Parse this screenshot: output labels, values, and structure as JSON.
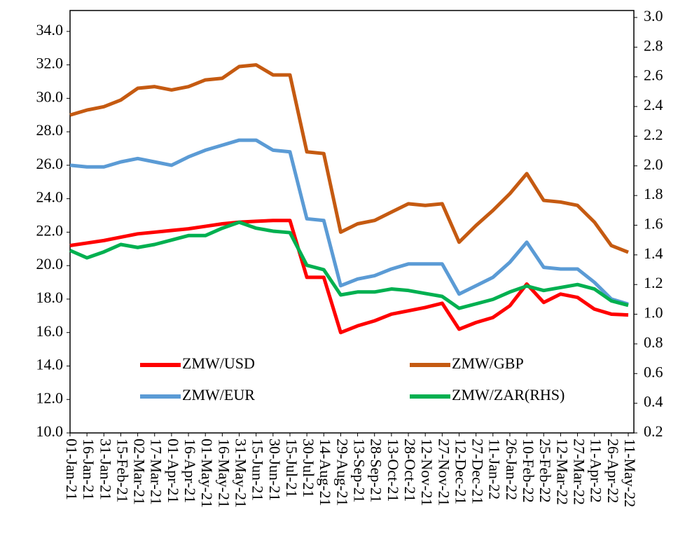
{
  "chart_data": {
    "type": "line",
    "categories": [
      "01-Jan-21",
      "16-Jan-21",
      "31-Jan-21",
      "15-Feb-21",
      "02-Mar-21",
      "17-Mar-21",
      "01-Apr-21",
      "16-Apr-21",
      "01-May-21",
      "16-May-21",
      "31-May-21",
      "15-Jun-21",
      "30-Jun-21",
      "15-Jul-21",
      "30-Jul-21",
      "14-Aug-21",
      "29-Aug-21",
      "13-Sep-21",
      "28-Sep-21",
      "13-Oct-21",
      "28-Oct-21",
      "12-Nov-21",
      "27-Nov-21",
      "12-Dec-21",
      "27-Dec-21",
      "11-Jan-22",
      "26-Jan-22",
      "10-Feb-22",
      "25-Feb-22",
      "12-Mar-22",
      "27-Mar-22",
      "11-Apr-22",
      "26-Apr-22",
      "11-May-22"
    ],
    "series": [
      {
        "name": "ZMW/USD",
        "color": "#ff0000",
        "values": [
          21.2,
          21.35,
          21.5,
          21.7,
          21.9,
          22.0,
          22.1,
          22.2,
          22.35,
          22.5,
          22.6,
          22.65,
          22.7,
          22.7,
          19.3,
          19.3,
          16.0,
          16.4,
          16.7,
          17.1,
          17.3,
          17.5,
          17.75,
          16.2,
          16.6,
          16.9,
          17.6,
          18.9,
          17.8,
          18.3,
          18.1,
          17.4,
          17.1,
          17.05
        ]
      },
      {
        "name": "ZMW/GBP",
        "color": "#c55a11",
        "values": [
          29.0,
          29.3,
          29.5,
          29.9,
          30.6,
          30.7,
          30.5,
          30.7,
          31.1,
          31.2,
          31.9,
          32.0,
          31.4,
          31.4,
          26.8,
          26.7,
          22.0,
          22.5,
          22.7,
          23.2,
          23.7,
          23.6,
          23.7,
          21.4,
          22.4,
          23.3,
          24.3,
          25.5,
          23.9,
          23.8,
          23.6,
          22.6,
          21.2,
          20.8
        ]
      },
      {
        "name": "ZMW/EUR",
        "color": "#5b9bd5",
        "values": [
          26.0,
          25.9,
          25.9,
          26.2,
          26.4,
          26.2,
          26.0,
          26.5,
          26.9,
          27.2,
          27.5,
          27.5,
          26.9,
          26.8,
          22.8,
          22.7,
          18.8,
          19.2,
          19.4,
          19.8,
          20.1,
          20.1,
          20.1,
          18.3,
          18.8,
          19.3,
          20.2,
          21.4,
          19.9,
          19.8,
          19.8,
          19.0,
          18.0,
          17.7
        ]
      },
      {
        "name": "ZMW/ZAR(RHS)",
        "color": "#00b050",
        "axis": "y2",
        "values": [
          1.43,
          1.38,
          1.42,
          1.47,
          1.45,
          1.47,
          1.5,
          1.53,
          1.53,
          1.58,
          1.62,
          1.58,
          1.56,
          1.55,
          1.33,
          1.3,
          1.13,
          1.15,
          1.15,
          1.17,
          1.16,
          1.14,
          1.12,
          1.04,
          1.07,
          1.1,
          1.15,
          1.19,
          1.16,
          1.18,
          1.2,
          1.17,
          1.09,
          1.06
        ]
      }
    ],
    "ylim": [
      10,
      35.25
    ],
    "yticks": [
      {
        "value": 10,
        "label": "10.0"
      },
      {
        "value": 12,
        "label": "12.0"
      },
      {
        "value": 14,
        "label": "14.0"
      },
      {
        "value": 16,
        "label": "16.0"
      },
      {
        "value": 18,
        "label": "18.0"
      },
      {
        "value": 20,
        "label": "20.0"
      },
      {
        "value": 22,
        "label": "22.0"
      },
      {
        "value": 24,
        "label": "24.0"
      },
      {
        "value": 26,
        "label": "26.0"
      },
      {
        "value": 28,
        "label": "28.0"
      },
      {
        "value": 30,
        "label": "30.0"
      },
      {
        "value": 32,
        "label": "32.0"
      },
      {
        "value": 34,
        "label": "34.0"
      }
    ],
    "y2lim": [
      0.2,
      3.047
    ],
    "y2ticks": [
      0.2,
      0.4,
      0.6,
      0.8,
      {
        "value": 1,
        "label": "1.0"
      },
      1.2,
      1.4,
      1.6,
      1.8,
      {
        "value": 2,
        "label": "2.0"
      },
      2.2,
      2.4,
      2.6,
      2.8,
      {
        "value": 3,
        "label": "3.0"
      }
    ],
    "grid": false
  }
}
